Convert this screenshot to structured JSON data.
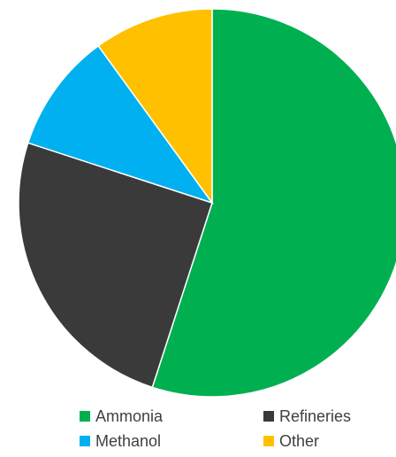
{
  "chart_data": {
    "type": "pie",
    "title": "",
    "start_angle_deg": 0,
    "direction": "clockwise",
    "legend_position": "bottom",
    "slices": [
      {
        "label": "Ammonia",
        "value": 55,
        "color": "#00B050"
      },
      {
        "label": "Refineries",
        "value": 25,
        "color": "#3A3A3A"
      },
      {
        "label": "Methanol",
        "value": 10,
        "color": "#00B0F0"
      },
      {
        "label": "Other",
        "value": 10,
        "color": "#FFC000"
      }
    ]
  }
}
